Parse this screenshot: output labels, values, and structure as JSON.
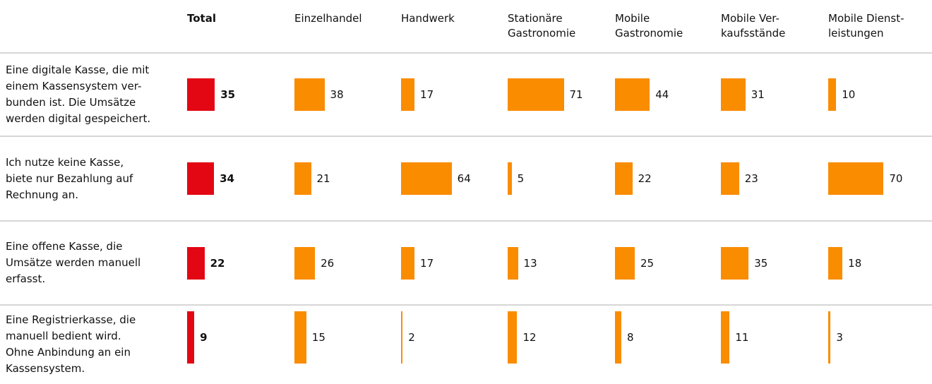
{
  "chart_data": {
    "type": "bar",
    "categories": [
      "Eine digitale Kasse, die mit\neinem Kassensystem ver-\nbunden ist. Die Umsätze\nwerden digital gespeichert.",
      "Ich nutze keine Kasse,\nbiete nur Bezahlung auf\nRechnung an.",
      "Eine offene Kasse, die\nUmsätze werden manuell\nerfasst.",
      "Eine Registrierkasse, die\nmanuell bedient wird.\nOhne Anbindung an ein\nKassensystem."
    ],
    "series": [
      {
        "name": "Total",
        "color": "#e30613",
        "values": [
          35,
          34,
          22,
          9
        ]
      },
      {
        "name": "Einzelhandel",
        "color": "#fa8c00",
        "values": [
          38,
          21,
          26,
          15
        ]
      },
      {
        "name": "Handwerk",
        "color": "#fa8c00",
        "values": [
          17,
          64,
          17,
          2
        ]
      },
      {
        "name": "Stationäre\nGastronomie",
        "color": "#fa8c00",
        "values": [
          71,
          5,
          13,
          12
        ]
      },
      {
        "name": "Mobile\nGastronomie",
        "color": "#fa8c00",
        "values": [
          44,
          22,
          25,
          8
        ]
      },
      {
        "name": "Mobile Ver-\nkaufsstände",
        "color": "#fa8c00",
        "values": [
          31,
          23,
          35,
          11
        ]
      },
      {
        "name": "Mobile Dienst-\nleistungen",
        "color": "#fa8c00",
        "values": [
          10,
          70,
          18,
          3
        ]
      }
    ]
  }
}
